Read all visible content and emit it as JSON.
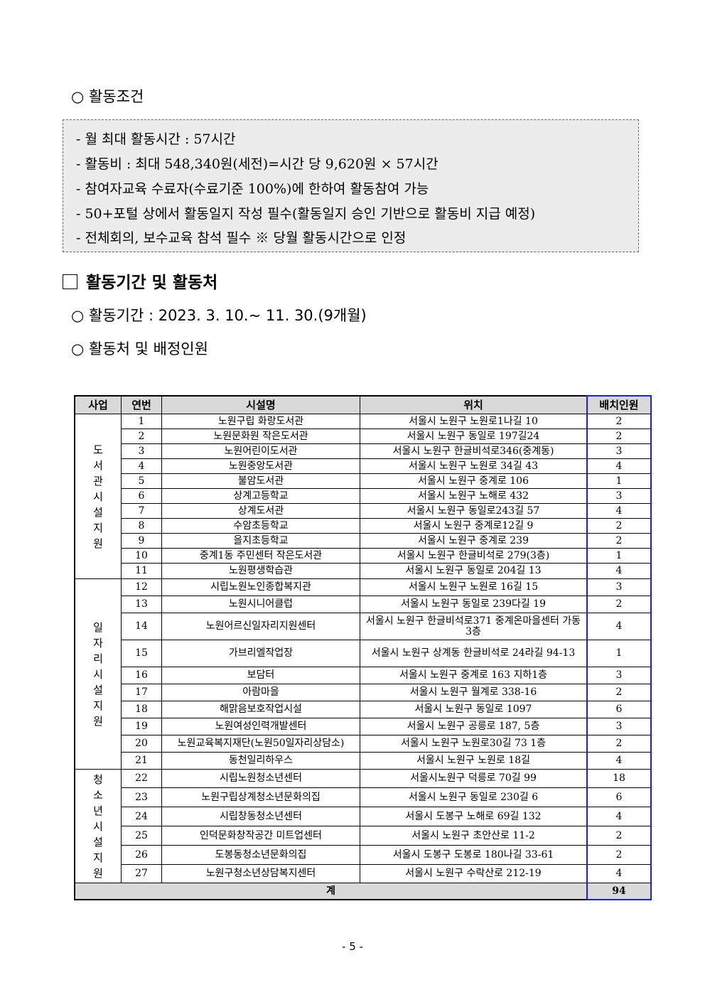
{
  "conditions": {
    "heading": "○ 활동조건",
    "lines": [
      "- 월 최대 활동시간 : 57시간",
      "- 활동비 : 최대 548,340원(세전)=시간 당 9,620원 × 57시간",
      "- 참여자교육 수료자(수료기준 100%)에 한하여 활동참여 가능",
      "- 50+포털 상에서 활동일지 작성 필수(활동일지 승인 기반으로 활동비 지급 예정)",
      "- 전체회의, 보수교육 참석 필수 ※ 당월 활동시간으로 인정"
    ]
  },
  "section": {
    "title": "활동기간 및 활동처"
  },
  "period": "○ 활동기간 : 2023. 3. 10.~ 11. 30.(9개월)",
  "places_heading": "○ 활동처 및 배정인원",
  "table": {
    "headers": [
      "사업",
      "연번",
      "시설명",
      "위치",
      "배치인원"
    ],
    "groups": [
      {
        "label": "도서관시설 지원",
        "rows": [
          [
            "1",
            "노원구립 화랑도서관",
            "서울시 노원구 노원로1나길 10",
            "2"
          ],
          [
            "2",
            "노원문화원 작은도서관",
            "서울시 노원구 동일로 197길24",
            "2"
          ],
          [
            "3",
            "노원어린이도서관",
            "서울시 노원구 한글비석로346(중계동)",
            "3"
          ],
          [
            "4",
            "노원중앙도서관",
            "서울시 노원구 노원로 34길 43",
            "4"
          ],
          [
            "5",
            "불암도서관",
            "서울시 노원구 중계로 106",
            "1"
          ],
          [
            "6",
            "상계고등학교",
            "서울시 노원구 노해로 432",
            "3"
          ],
          [
            "7",
            "상계도서관",
            "서울시 노원구 동일로243길 57",
            "4"
          ],
          [
            "8",
            "수암초등학교",
            "서울시 노원구 중계로12길 9",
            "2"
          ],
          [
            "9",
            "을지초등학교",
            "서울시 노원구 중계로 239",
            "2"
          ],
          [
            "10",
            "중계1동 주민센터 작은도서관",
            "서울시 노원구 한글비석로 279(3층)",
            "1"
          ],
          [
            "11",
            "노원평생학습관",
            "서울시 노원구 동일로 204길 13",
            "4"
          ]
        ]
      },
      {
        "label": "일자리시설 지원",
        "rows": [
          [
            "12",
            "시립노원노인종합복지관",
            "서울시 노원구 노원로 16길 15",
            "3"
          ],
          [
            "13",
            "노원시니어클럽",
            "서울시 노원구 동일로 239다길 19",
            "2"
          ],
          [
            "14",
            "노원어르신일자리지원센터",
            "서울시 노원구 한글비석로371 중계온마을센터 가동 3층",
            "4"
          ],
          [
            "15",
            "가브리엘작업장",
            "서울시 노원구 상계동 한글비석로 24라길 94-13",
            "1"
          ],
          [
            "16",
            "보담터",
            "서울시 노원구 중계로 163 지하1층",
            "3"
          ],
          [
            "17",
            "아람마을",
            "서울시 노원구 월계로 338-16",
            "2"
          ],
          [
            "18",
            "해맑음보호작업시설",
            "서울시 노원구 동일로 1097",
            "6"
          ],
          [
            "19",
            "노원여성인력개발센터",
            "서울시 노원구 공릉로 187, 5층",
            "3"
          ],
          [
            "20",
            "노원교육복지재단(노원50일자리상담소)",
            "서울시 노원구 노원로30길 73 1층",
            "2"
          ],
          [
            "21",
            "동천일리하우스",
            "서울시 노원구 노원로 18길",
            "4"
          ]
        ]
      },
      {
        "label": "청소년시설 지원",
        "rows": [
          [
            "22",
            "시립노원청소년센터",
            "서울시노원구 덕릉로 70길 99",
            "18"
          ],
          [
            "23",
            "노원구립상계청소년문화의집",
            "서울시 노원구 동일로 230길 6",
            "6"
          ],
          [
            "24",
            "시립창동청소년센터",
            "서울시 도봉구 노해로 69길 132",
            "4"
          ],
          [
            "25",
            "인덕문화창작공간 미트업센터",
            "서울시 노원구 초안산로 11-2",
            "2"
          ],
          [
            "26",
            "도봉동청소년문화의집",
            "서울시 도봉구 도봉로 180나길 33-61",
            "2"
          ],
          [
            "27",
            "노원구청소년상담복지센터",
            "서울시 노원구 수락산로 212-19",
            "4"
          ]
        ]
      }
    ],
    "total_label": "계",
    "total_value": "94"
  },
  "page_number": "- 5 -"
}
